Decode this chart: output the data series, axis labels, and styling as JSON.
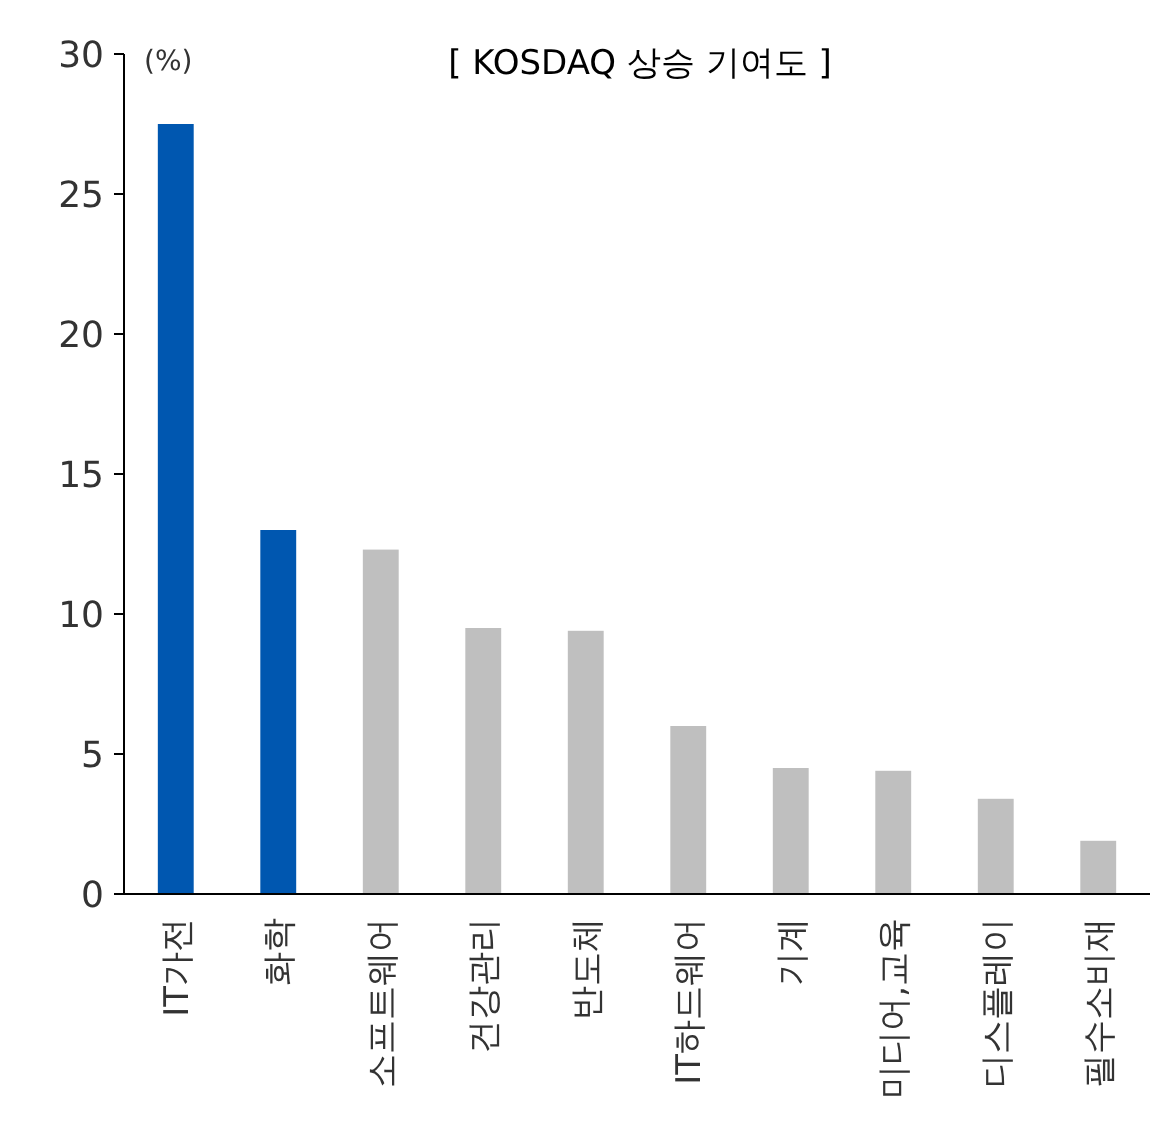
{
  "chart_data": {
    "type": "bar",
    "title": "[ KOSDAQ 상승 기여도 ]",
    "ylabel": "(%)",
    "categories": [
      "IT가전",
      "화학",
      "소프트웨어",
      "건강관리",
      "반도체",
      "IT하드웨어",
      "기계",
      "미디어,교육",
      "디스플레이",
      "필수소비재"
    ],
    "values": [
      27.5,
      13.0,
      12.3,
      9.5,
      9.4,
      6.0,
      4.5,
      4.4,
      3.4,
      1.9
    ],
    "colors": [
      "#0057b0",
      "#0057b0",
      "#bfbfbf",
      "#bfbfbf",
      "#bfbfbf",
      "#bfbfbf",
      "#bfbfbf",
      "#bfbfbf",
      "#bfbfbf",
      "#bfbfbf"
    ],
    "ylim": [
      0,
      30
    ],
    "yticks": [
      0,
      5,
      10,
      15,
      20,
      25,
      30
    ],
    "grid": false
  }
}
